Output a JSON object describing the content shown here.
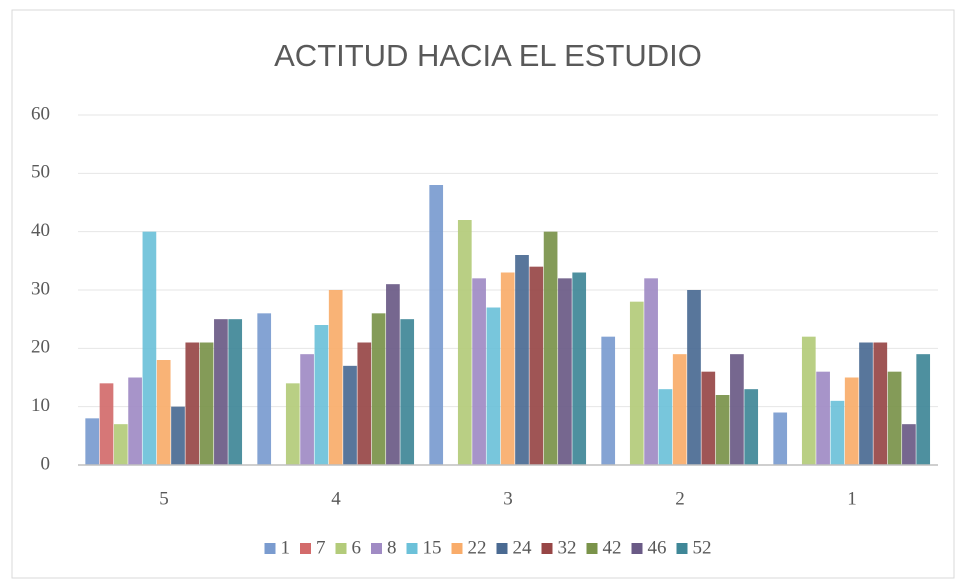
{
  "chart_data": {
    "type": "bar",
    "title": "ACTITUD HACIA EL ESTUDIO",
    "categories": [
      "5",
      "4",
      "3",
      "2",
      "1"
    ],
    "series": [
      {
        "name": "1",
        "color": "#7a9bcf",
        "values": [
          8,
          26,
          48,
          22,
          9
        ]
      },
      {
        "name": "7",
        "color": "#d36b6b",
        "values": [
          14,
          0,
          0,
          0,
          0
        ]
      },
      {
        "name": "6",
        "color": "#b3cb7a",
        "values": [
          7,
          14,
          42,
          28,
          22
        ]
      },
      {
        "name": "8",
        "color": "#a08bc4",
        "values": [
          15,
          19,
          32,
          32,
          16
        ]
      },
      {
        "name": "15",
        "color": "#6cc1d9",
        "values": [
          40,
          24,
          27,
          13,
          11
        ]
      },
      {
        "name": "22",
        "color": "#f9ac6a",
        "values": [
          18,
          30,
          33,
          19,
          15
        ]
      },
      {
        "name": "24",
        "color": "#4a6a92",
        "values": [
          10,
          17,
          36,
          30,
          21
        ]
      },
      {
        "name": "32",
        "color": "#974646",
        "values": [
          21,
          21,
          34,
          16,
          21
        ]
      },
      {
        "name": "42",
        "color": "#7a934a",
        "values": [
          21,
          26,
          40,
          12,
          16
        ]
      },
      {
        "name": "46",
        "color": "#6a5a86",
        "values": [
          25,
          31,
          32,
          19,
          7
        ]
      },
      {
        "name": "52",
        "color": "#3f8797",
        "values": [
          25,
          25,
          33,
          13,
          19
        ]
      }
    ],
    "ylim": [
      0,
      60
    ],
    "yticks": [
      0,
      10,
      20,
      30,
      40,
      50,
      60
    ],
    "grid": true,
    "legend": "bottom"
  }
}
